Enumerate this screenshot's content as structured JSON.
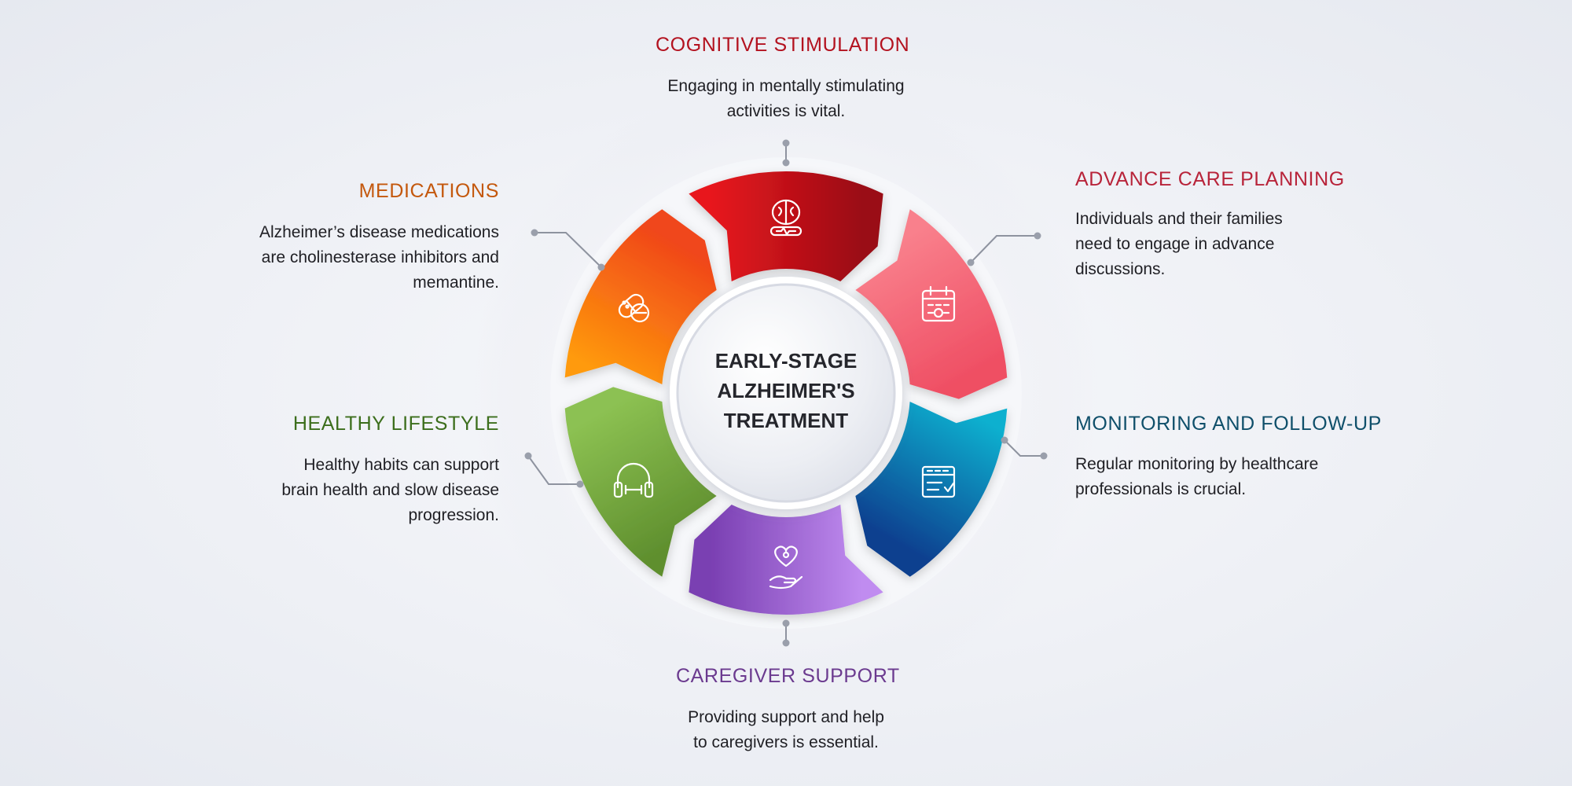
{
  "center": {
    "lines": [
      "EARLY-STAGE",
      "ALZHEIMER'S",
      "TREATMENT"
    ]
  },
  "steps": [
    {
      "id": "cognitive",
      "title": "COGNITIVE STIMULATION",
      "lines": [
        "Engaging in mentally stimulating",
        "activities is vital."
      ],
      "color": "#b3121f",
      "gradient": [
        "#e8161d",
        "#9a0c15"
      ],
      "icon": "brain-icon"
    },
    {
      "id": "advance",
      "title": "ADVANCE CARE PLANNING",
      "lines": [
        "Individuals and their families",
        "need to engage in advance",
        "discussions."
      ],
      "color": "#b8243a",
      "gradient": [
        "#f9808c",
        "#ef4f64"
      ],
      "icon": "calendar-icon"
    },
    {
      "id": "monitoring",
      "title": "MONITORING AND FOLLOW-UP",
      "lines": [
        "Regular monitoring by healthcare",
        "professionals is crucial."
      ],
      "color": "#0f4f6a",
      "gradient": [
        "#0fb0cf",
        "#0d3f8f"
      ],
      "icon": "checklist-icon"
    },
    {
      "id": "caregiver",
      "title": "CAREGIVER SUPPORT",
      "lines": [
        "Providing support and help",
        "to caregivers is essential."
      ],
      "color": "#6b3a8f",
      "gradient": [
        "#c08cf0",
        "#7a3fb2"
      ],
      "icon": "heart-hand-icon"
    },
    {
      "id": "healthy",
      "title": "HEALTHY LIFESTYLE",
      "lines": [
        "Healthy habits can support",
        "brain health and slow disease",
        "progression."
      ],
      "color": "#3c6e1c",
      "gradient": [
        "#5f8f2e",
        "#8cc152"
      ],
      "icon": "headphones-dumbbell-icon"
    },
    {
      "id": "medications",
      "title": "MEDICATIONS",
      "lines": [
        "Alzheimer’s disease medications",
        "are cholinesterase inhibitors and",
        "memantine."
      ],
      "color": "#c4580d",
      "gradient": [
        "#ff9a0b",
        "#f0461a"
      ],
      "icon": "pills-icon"
    }
  ]
}
